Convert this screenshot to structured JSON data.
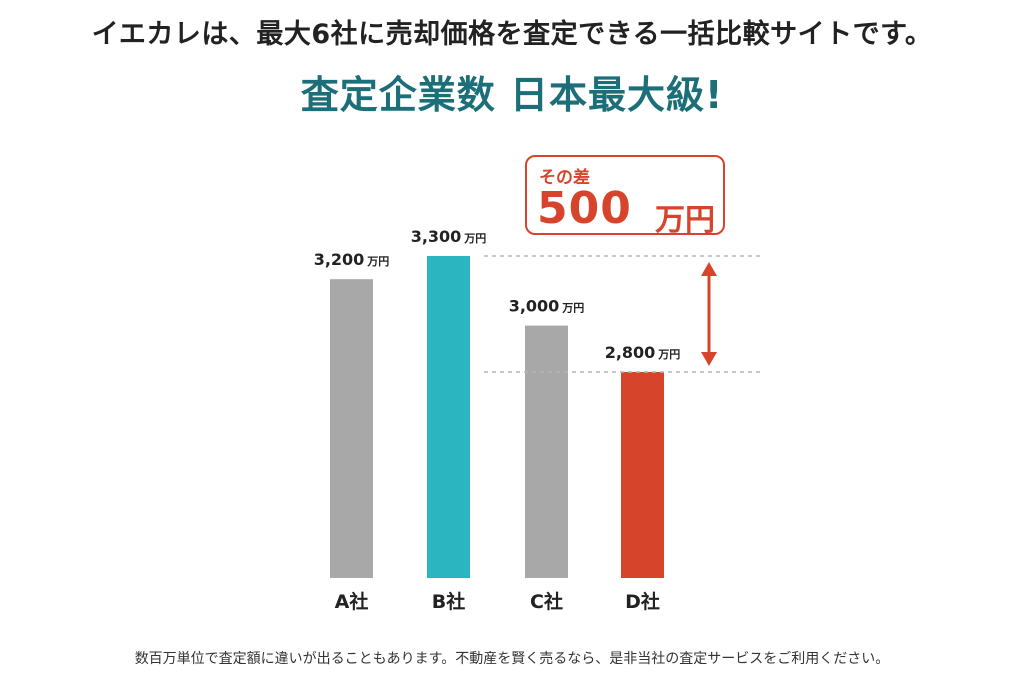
{
  "headline": "イエカレは、最大6社に売却価格を査定できる一括比較サイトです。",
  "subheadline": "査定企業数 日本最大級!",
  "callout": {
    "label": "その差",
    "number": "500",
    "unit": "万円"
  },
  "footnote": "数百万単位で査定額に違いが出ることもあります。不動産を賢く売るなら、是非当社の査定サービスをご利用ください。",
  "colors": {
    "gray": "#a8a8a8",
    "teal": "#2bb5c0",
    "red": "#d6452b",
    "title_teal": "#1c6e78",
    "dash": "#b5b5b5"
  },
  "chart_data": {
    "type": "bar",
    "categories": [
      "A社",
      "B社",
      "C社",
      "D社"
    ],
    "values": [
      3200,
      3300,
      3000,
      2800
    ],
    "value_labels": [
      "3,200",
      "3,300",
      "3,000",
      "2,800"
    ],
    "value_unit": "万円",
    "bar_colors": [
      "#a8a8a8",
      "#2bb5c0",
      "#a8a8a8",
      "#d6452b"
    ],
    "difference": 500,
    "grid": false
  }
}
